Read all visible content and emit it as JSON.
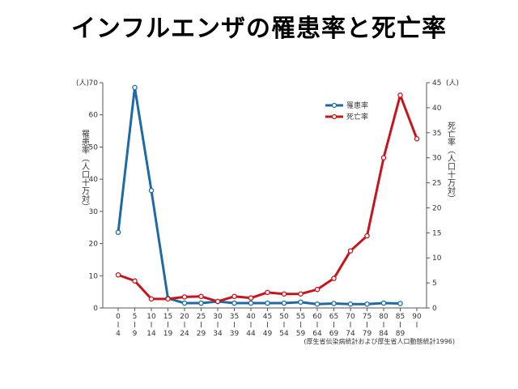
{
  "title": "インフルエンザの罹患率と死亡率",
  "chart_data": {
    "type": "line",
    "categories": [
      {
        "top": "0",
        "bottom": "4"
      },
      {
        "top": "5",
        "bottom": "9"
      },
      {
        "top": "10",
        "bottom": "14"
      },
      {
        "top": "15",
        "bottom": "19"
      },
      {
        "top": "20",
        "bottom": "24"
      },
      {
        "top": "25",
        "bottom": "29"
      },
      {
        "top": "30",
        "bottom": "34"
      },
      {
        "top": "35",
        "bottom": "39"
      },
      {
        "top": "40",
        "bottom": "44"
      },
      {
        "top": "45",
        "bottom": "49"
      },
      {
        "top": "50",
        "bottom": "54"
      },
      {
        "top": "55",
        "bottom": "59"
      },
      {
        "top": "60",
        "bottom": "64"
      },
      {
        "top": "65",
        "bottom": "69"
      },
      {
        "top": "70",
        "bottom": "74"
      },
      {
        "top": "75",
        "bottom": "79"
      },
      {
        "top": "80",
        "bottom": "84"
      },
      {
        "top": "85",
        "bottom": "89"
      },
      {
        "top": "90",
        "bottom": ""
      }
    ],
    "left_axis": {
      "unit": "(人)",
      "title": "罹患率（人口十万対）",
      "range": [
        0,
        70
      ],
      "ticks": [
        "0",
        "10",
        "20",
        "30",
        "40",
        "50",
        "60",
        "70"
      ]
    },
    "right_axis": {
      "unit": "(人)",
      "title": "死亡率（人口十万対）",
      "range": [
        0,
        45
      ],
      "ticks": [
        "0",
        "5",
        "10",
        "15",
        "20",
        "25",
        "30",
        "35",
        "40",
        "45"
      ]
    },
    "series": [
      {
        "name": "罹患率",
        "axis": "left",
        "color": "#1f6aa5",
        "values": [
          23.5,
          68.5,
          36.5,
          3.0,
          1.5,
          1.5,
          2.0,
          1.5,
          1.5,
          1.5,
          1.5,
          1.8,
          1.2,
          1.4,
          1.2,
          1.2,
          1.5,
          1.4,
          null
        ]
      },
      {
        "name": "死亡率",
        "axis": "right",
        "color": "#c4161c",
        "values": [
          6.6,
          5.4,
          1.8,
          1.8,
          2.2,
          2.3,
          1.3,
          2.3,
          2.0,
          3.1,
          2.8,
          2.8,
          3.7,
          5.9,
          11.4,
          14.4,
          30.0,
          42.5,
          33.8
        ]
      }
    ],
    "legend_position": "top-right",
    "grid": false,
    "source": "(厚生省伝染病統計および厚生省人口動態統計1996)"
  }
}
